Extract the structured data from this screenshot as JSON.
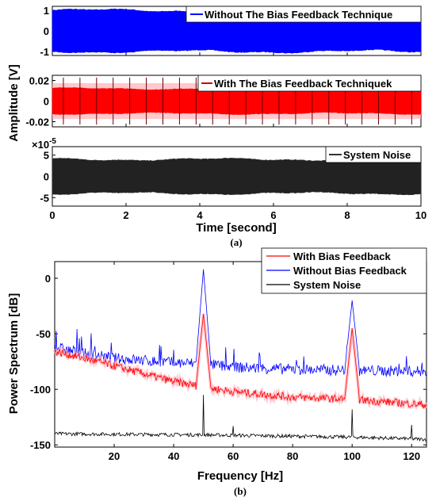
{
  "chart_data": [
    {
      "type": "line",
      "panel": "a",
      "caption": "(a)",
      "xlabel": "Time [second]",
      "ylabel": "Amplitude [V]",
      "xlim": [
        0,
        10
      ],
      "xticks": [
        "0",
        "2",
        "4",
        "6",
        "8",
        "10"
      ],
      "subplots": [
        {
          "series_name": "Without The Bias Feedback Technique",
          "color": "#0000ff",
          "ylim": [
            -1.2,
            1.2
          ],
          "yticks": [
            "1",
            "0",
            "-1"
          ],
          "amplitude": 1.0
        },
        {
          "series_name": "With The Bias Feedback Techniquek",
          "color": "#ff0000",
          "ylim": [
            -0.025,
            0.025
          ],
          "yticks": [
            "0.02",
            "0",
            "-0.02"
          ],
          "amplitude": 0.012
        },
        {
          "series_name": "System Noise",
          "color": "#000000",
          "ylim": [
            -7,
            7
          ],
          "yticks": [
            "5",
            "0",
            "-5"
          ],
          "scale_label": "×10",
          "scale_exponent": "-5",
          "amplitude": 4
        }
      ]
    },
    {
      "type": "line",
      "panel": "b",
      "caption": "(b)",
      "xlabel": "Frequency [Hz]",
      "ylabel": "Power Spectrum  [dB]",
      "xlim": [
        0,
        125
      ],
      "ylim": [
        -152,
        15
      ],
      "xticks": [
        "20",
        "40",
        "60",
        "80",
        "100",
        "120"
      ],
      "yticks": [
        "0",
        "-50",
        "-100",
        "-150"
      ],
      "legend_position": "top-right",
      "series": [
        {
          "name": "With Bias Feedback",
          "color": "#ff0000",
          "baseline_points": [
            [
              0,
              -66
            ],
            [
              10,
              -72
            ],
            [
              20,
              -79
            ],
            [
              30,
              -86
            ],
            [
              40,
              -93
            ],
            [
              50,
              -98
            ],
            [
              60,
              -102
            ],
            [
              80,
              -107
            ],
            [
              100,
              -109
            ],
            [
              125,
              -114
            ]
          ],
          "peaks": [
            [
              50,
              -32
            ],
            [
              100,
              -45
            ]
          ]
        },
        {
          "name": "Without Bias Feedback",
          "color": "#0000ff",
          "baseline_points": [
            [
              0,
              -62
            ],
            [
              10,
              -68
            ],
            [
              20,
              -72
            ],
            [
              30,
              -74
            ],
            [
              40,
              -76
            ],
            [
              50,
              -77
            ],
            [
              60,
              -80
            ],
            [
              80,
              -82
            ],
            [
              100,
              -83
            ],
            [
              125,
              -84
            ]
          ],
          "peaks": [
            [
              50,
              8
            ],
            [
              100,
              -20
            ]
          ]
        },
        {
          "name": "System Noise",
          "color": "#000000",
          "baseline_points": [
            [
              0,
              -140
            ],
            [
              50,
              -141
            ],
            [
              100,
              -143
            ],
            [
              125,
              -145
            ]
          ],
          "peaks": [
            [
              50,
              -105
            ],
            [
              60,
              -133
            ],
            [
              100,
              -118
            ],
            [
              120,
              -132
            ]
          ]
        }
      ]
    }
  ]
}
